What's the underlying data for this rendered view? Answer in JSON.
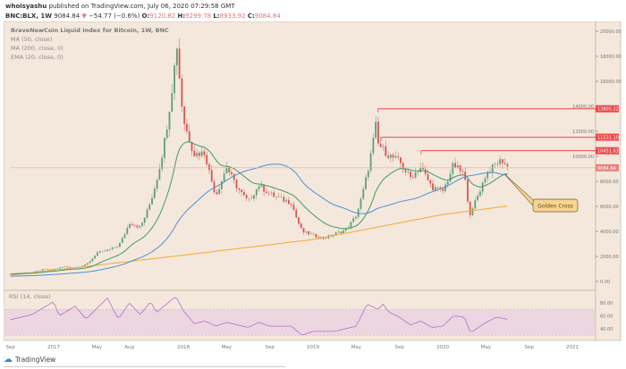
{
  "header": {
    "author": "whoisyashu",
    "published": "published on TradingView.com, July 06, 2020 07:29:58 GMT",
    "symbol": "BNC:BLX, 1W",
    "last": "9084.84",
    "change": "−54.77 (−0.6%)",
    "o_label": "O:",
    "o": "9120.82",
    "h_label": "H:",
    "h": "9299.78",
    "l_label": "L:",
    "l": "8933.92",
    "c_label": "C:",
    "c": "9084.84"
  },
  "legend": {
    "title": "BraveNewCoin Liquid Index for Bitcoin, 1W, BNC",
    "ma50": "MA (50, close)",
    "ma200": "MA (200, close, 0)",
    "ema20": "EMA (20, close, 0)",
    "rsi": "RSI (14, close)"
  },
  "annotation": {
    "label": "Golden Cross"
  },
  "footer": {
    "brand": "TradingView"
  },
  "chart_data": {
    "type": "candlestick",
    "title": "BraveNewCoin Liquid Index for Bitcoin, 1W, BNC",
    "price_axis": {
      "min": 0,
      "max": 20000,
      "ticks": [
        "20000.00",
        "18000.00",
        "16000.00",
        "14000.00",
        "12000.00",
        "10000.00",
        "8000.00",
        "6000.00",
        "4000.00",
        "2000.00",
        "0.00"
      ]
    },
    "rsi_axis": {
      "ticks": [
        "80.00",
        "60.00",
        "40.00"
      ],
      "band": [
        30,
        70
      ]
    },
    "time_ticks": [
      {
        "label": "Sep",
        "m": -4
      },
      {
        "label": "2017",
        "m": 0
      },
      {
        "label": "May",
        "m": 4
      },
      {
        "label": "Aug",
        "m": 7
      },
      {
        "label": "2018",
        "m": 12
      },
      {
        "label": "May",
        "m": 16
      },
      {
        "label": "Sep",
        "m": 20
      },
      {
        "label": "2019",
        "m": 24
      },
      {
        "label": "May",
        "m": 28
      },
      {
        "label": "Sep",
        "m": 32
      },
      {
        "label": "2020",
        "m": 36
      },
      {
        "label": "May",
        "m": 40
      },
      {
        "label": "Sep",
        "m": 44
      },
      {
        "label": "2021",
        "m": 48
      }
    ],
    "price_path": [
      [
        -4,
        610
      ],
      [
        -3,
        700
      ],
      [
        -2,
        740
      ],
      [
        -1,
        960
      ],
      [
        0,
        970
      ],
      [
        1,
        1190
      ],
      [
        2,
        1080
      ],
      [
        3,
        1350
      ],
      [
        4,
        2300
      ],
      [
        5,
        2480
      ],
      [
        6,
        2870
      ],
      [
        7,
        4700
      ],
      [
        8,
        4340
      ],
      [
        9,
        6470
      ],
      [
        10,
        10000
      ],
      [
        11.4,
        19000
      ],
      [
        12,
        13000
      ],
      [
        13,
        10200
      ],
      [
        14,
        10300
      ],
      [
        15,
        6900
      ],
      [
        16,
        9200
      ],
      [
        17,
        7500
      ],
      [
        18,
        6400
      ],
      [
        19,
        7700
      ],
      [
        20,
        7000
      ],
      [
        21,
        6600
      ],
      [
        22,
        6300
      ],
      [
        23,
        4000
      ],
      [
        24,
        3700
      ],
      [
        25,
        3450
      ],
      [
        26,
        3800
      ],
      [
        27,
        4100
      ],
      [
        28,
        5300
      ],
      [
        29,
        8600
      ],
      [
        29.8,
        12500
      ],
      [
        30,
        11000
      ],
      [
        31,
        10100
      ],
      [
        32,
        9600
      ],
      [
        33,
        8300
      ],
      [
        34,
        9150
      ],
      [
        35,
        7550
      ],
      [
        36,
        7200
      ],
      [
        37,
        9350
      ],
      [
        38,
        8550
      ],
      [
        38.6,
        5200
      ],
      [
        39,
        6400
      ],
      [
        40,
        8600
      ],
      [
        41,
        9450
      ],
      [
        41.5,
        9700
      ],
      [
        42,
        9150
      ],
      [
        42.2,
        9085
      ]
    ],
    "ma200_path": [
      [
        -4,
        500
      ],
      [
        12,
        2100
      ],
      [
        24,
        3350
      ],
      [
        36,
        5350
      ],
      [
        42.2,
        6050
      ]
    ],
    "rsi_path": [
      [
        -4,
        54
      ],
      [
        -2,
        62
      ],
      [
        0,
        82
      ],
      [
        0.5,
        60
      ],
      [
        2,
        75
      ],
      [
        3,
        55
      ],
      [
        5,
        88
      ],
      [
        5.5,
        70
      ],
      [
        6,
        55
      ],
      [
        7,
        80
      ],
      [
        8,
        62
      ],
      [
        9,
        82
      ],
      [
        9.5,
        65
      ],
      [
        11.3,
        90
      ],
      [
        12,
        68
      ],
      [
        13,
        48
      ],
      [
        14,
        52
      ],
      [
        15,
        44
      ],
      [
        16,
        50
      ],
      [
        18,
        42
      ],
      [
        19,
        50
      ],
      [
        20,
        44
      ],
      [
        22,
        44
      ],
      [
        23,
        30
      ],
      [
        24,
        36
      ],
      [
        26,
        36
      ],
      [
        28,
        44
      ],
      [
        29,
        78
      ],
      [
        30,
        70
      ],
      [
        30.5,
        78
      ],
      [
        31,
        66
      ],
      [
        32,
        58
      ],
      [
        33,
        46
      ],
      [
        34,
        52
      ],
      [
        35,
        42
      ],
      [
        36,
        44
      ],
      [
        37,
        60
      ],
      [
        38,
        58
      ],
      [
        38.6,
        34
      ],
      [
        40,
        50
      ],
      [
        41,
        58
      ],
      [
        42.2,
        54
      ]
    ],
    "levels": [
      {
        "value": 13805.22,
        "label": "13805.22",
        "from_m": 30
      },
      {
        "value": 11531.1,
        "label": "11531.10",
        "from_m": 30.3
      },
      {
        "value": 10451.63,
        "label": "10451.63",
        "from_m": 34
      },
      {
        "value": 9084.84,
        "label": "9084.84",
        "from_m": -4
      }
    ],
    "colors": {
      "up": "#5f9e77",
      "down": "#d9534f",
      "ma50": "#4f8fd6",
      "ma200": "#f2ae44",
      "ema20": "#3d9a6a",
      "rsi": "#b46fd0",
      "level": "#f0474a",
      "pane": "#f4e8dc"
    }
  }
}
